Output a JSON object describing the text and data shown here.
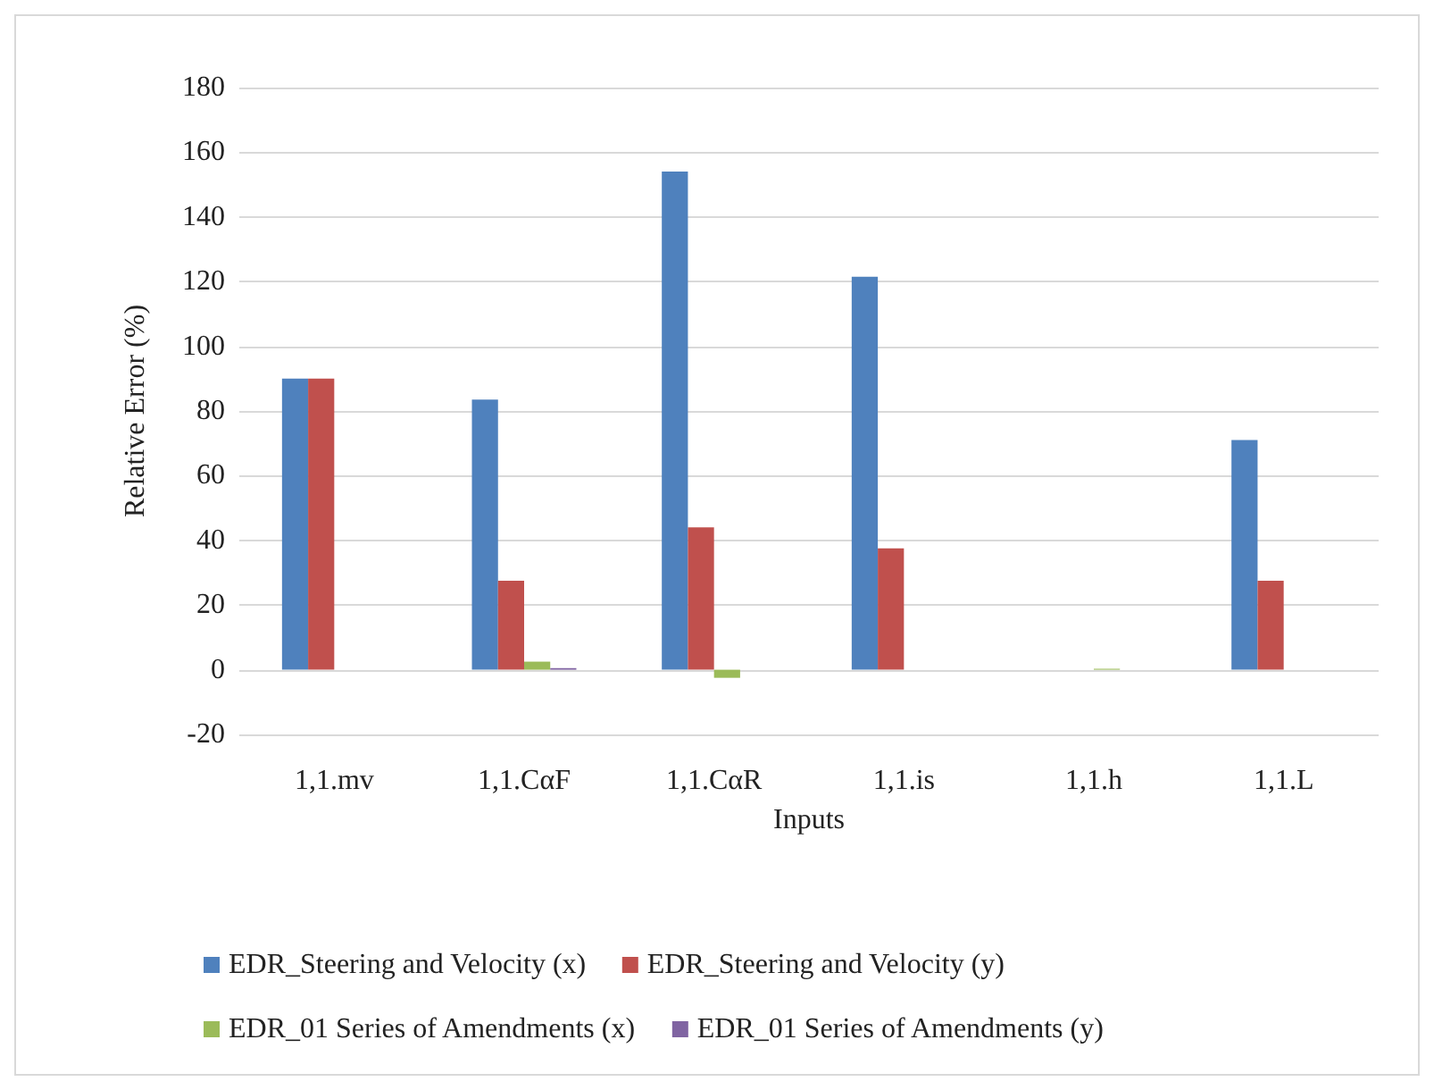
{
  "chart_data": {
    "type": "bar",
    "xlabel": "Inputs",
    "ylabel": "Relative Error (%)",
    "categories": [
      "1,1.mv",
      "1,1.CαF",
      "1,1.CαR",
      "1,1.is",
      "1,1.h",
      "1,1.L"
    ],
    "series": [
      {
        "name": "EDR_Steering and Velocity (x)",
        "color": "#4f81bd",
        "values": [
          90,
          83.5,
          154,
          121.5,
          0,
          71
        ]
      },
      {
        "name": "EDR_Steering and Velocity (y)",
        "color": "#c0504d",
        "values": [
          90,
          27.5,
          44,
          37.5,
          0,
          27.5
        ]
      },
      {
        "name": "EDR_01 Series of Amendments (x)",
        "color": "#9bbb59",
        "values": [
          0,
          2.5,
          -2.5,
          0,
          0.3,
          0
        ]
      },
      {
        "name": "EDR_01 Series of Amendments (y)",
        "color": "#8064a2",
        "values": [
          0,
          0.5,
          0,
          0,
          0,
          0
        ]
      }
    ],
    "ylim": [
      -20,
      180
    ],
    "yticks": [
      -20,
      0,
      20,
      40,
      60,
      80,
      100,
      120,
      140,
      160,
      180
    ],
    "grid": "y",
    "legend": "bottom"
  }
}
